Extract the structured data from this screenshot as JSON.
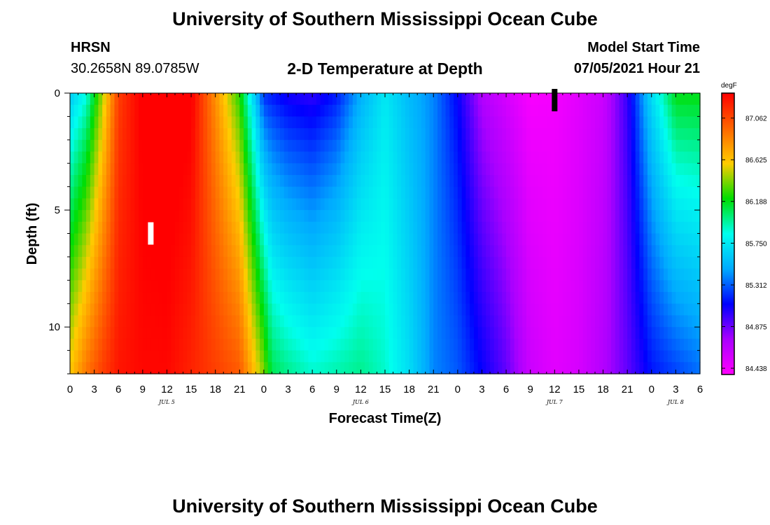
{
  "header": {
    "title_top": "University of Southern Mississippi Ocean Cube",
    "title_bottom": "University of Southern Mississippi Ocean Cube",
    "station": "HRSN",
    "coords": "30.2658N  89.0785W",
    "plot_title": "2-D Temperature at Depth",
    "model_label": "Model Start Time",
    "model_time": "07/05/2021 Hour 21"
  },
  "chart_data": {
    "type": "heatmap",
    "title": "2-D Temperature at Depth",
    "xlabel": "Forecast Time(Z)",
    "ylabel": "Depth (ft)",
    "x_hours_range": [
      0,
      78
    ],
    "y_range": [
      0,
      12
    ],
    "y_inverted": true,
    "x_tick_labels": [
      "0",
      "3",
      "6",
      "9",
      "12",
      "15",
      "18",
      "21",
      "0",
      "3",
      "6",
      "9",
      "12",
      "15",
      "18",
      "21",
      "0",
      "3",
      "6",
      "9",
      "12",
      "15",
      "18",
      "21",
      "0",
      "3",
      "6"
    ],
    "day_labels": [
      "JUL 5",
      "JUL 6",
      "JUL 7",
      "JUL 8"
    ],
    "y_tick_labels": [
      "0",
      "5",
      "10"
    ],
    "colorbar": {
      "unit": "degF",
      "labels": [
        "87.062",
        "86.625",
        "86.188",
        "85.750",
        "85.312",
        "84.875",
        "84.438"
      ],
      "colors": [
        "#ff0000",
        "#ff6600",
        "#ffcc00",
        "#00dd00",
        "#00ffee",
        "#00aaff",
        "#0000ff",
        "#aa00ff",
        "#ff00ff"
      ]
    },
    "surface_profile_hours": [
      0,
      2,
      4,
      6,
      9,
      12,
      15,
      18,
      21,
      24,
      27,
      30,
      33,
      36,
      39,
      42,
      45,
      48,
      51,
      54,
      57,
      60,
      63,
      66,
      69,
      72,
      75,
      78
    ],
    "surface_profile_temps_degF": [
      85.6,
      85.85,
      86.45,
      87.1,
      87.35,
      87.4,
      87.35,
      86.8,
      86.25,
      85.2,
      85.05,
      85.0,
      85.15,
      85.5,
      85.75,
      85.55,
      85.4,
      85.1,
      84.7,
      84.55,
      84.4,
      84.42,
      84.5,
      84.6,
      85.0,
      85.7,
      86.2,
      86.2
    ],
    "bottom_profile_hours": [
      0,
      2,
      4,
      6,
      9,
      12,
      15,
      18,
      21,
      24,
      25,
      27,
      30,
      33,
      36,
      39,
      42,
      45,
      48,
      51,
      54,
      57,
      60,
      63,
      66,
      69,
      72,
      75,
      78
    ],
    "bottom_profile_temps_degF": [
      86.6,
      86.9,
      87.1,
      87.25,
      87.3,
      87.3,
      87.2,
      87.1,
      87.0,
      86.4,
      86.1,
      86.0,
      85.9,
      85.95,
      86.0,
      85.9,
      85.7,
      85.4,
      85.3,
      85.1,
      84.9,
      84.6,
      84.5,
      84.55,
      84.7,
      84.9,
      85.15,
      85.25,
      85.35
    ],
    "markers": [
      {
        "hour": 10,
        "depth_ft": 6,
        "color": "#ffffff"
      },
      {
        "hour": 60,
        "depth_ft": 0.3,
        "color": "#000000"
      }
    ]
  }
}
